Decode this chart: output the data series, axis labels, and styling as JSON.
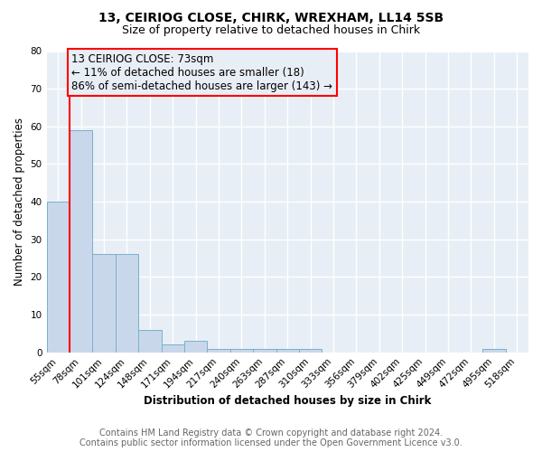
{
  "title": "13, CEIRIOG CLOSE, CHIRK, WREXHAM, LL14 5SB",
  "subtitle": "Size of property relative to detached houses in Chirk",
  "bar_values": [
    40,
    59,
    26,
    26,
    6,
    2,
    3,
    1,
    1,
    1,
    1,
    1,
    0,
    0,
    0,
    0,
    0,
    0,
    0,
    1,
    0
  ],
  "x_labels": [
    "55sqm",
    "78sqm",
    "101sqm",
    "124sqm",
    "148sqm",
    "171sqm",
    "194sqm",
    "217sqm",
    "240sqm",
    "263sqm",
    "287sqm",
    "310sqm",
    "333sqm",
    "356sqm",
    "379sqm",
    "402sqm",
    "425sqm",
    "449sqm",
    "472sqm",
    "495sqm",
    "518sqm"
  ],
  "bar_color": "#c8d8ea",
  "bar_edge_color": "#7ab0cc",
  "xlabel": "Distribution of detached houses by size in Chirk",
  "ylabel": "Number of detached properties",
  "ylim_max": 80,
  "yticks": [
    0,
    10,
    20,
    30,
    40,
    50,
    60,
    70,
    80
  ],
  "annotation_line1": "13 CEIRIOG CLOSE: 73sqm",
  "annotation_line2": "← 11% of detached houses are smaller (18)",
  "annotation_line3": "86% of semi-detached houses are larger (143) →",
  "red_line_x": 0.5,
  "footer_line1": "Contains HM Land Registry data © Crown copyright and database right 2024.",
  "footer_line2": "Contains public sector information licensed under the Open Government Licence v3.0.",
  "plot_bg_color": "#e8eef5",
  "fig_bg_color": "#ffffff",
  "grid_color": "#ffffff",
  "title_fontsize": 10,
  "subtitle_fontsize": 9,
  "label_fontsize": 8.5,
  "tick_fontsize": 7.5,
  "annot_fontsize": 8.5,
  "footer_fontsize": 7.0
}
